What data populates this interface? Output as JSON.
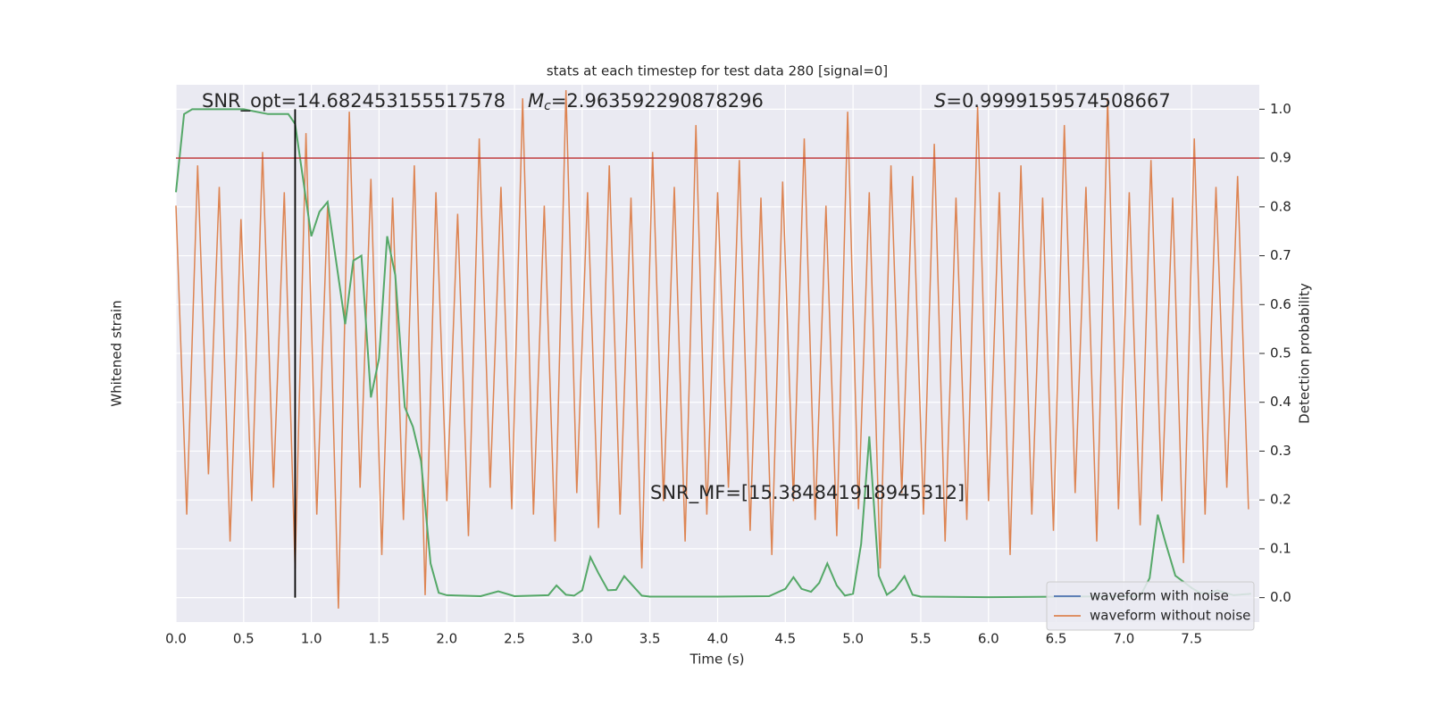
{
  "chart_data": {
    "type": "line",
    "title": "stats at each timestep for test data 280 [signal=0]",
    "xlabel": "Time (s)",
    "ylabel": "Whitened strain",
    "y2label": "Detection probability",
    "xlim": [
      0,
      8.0
    ],
    "ylim": [
      -1,
      1
    ],
    "y2lim": [
      -0.05,
      1.05
    ],
    "xticks": [
      {
        "value": 0,
        "label": "0.0"
      },
      {
        "value": 0.5,
        "label": "0.5"
      },
      {
        "value": 1,
        "label": "1.0"
      },
      {
        "value": 1.5,
        "label": "1.5"
      },
      {
        "value": 2,
        "label": "2.0"
      },
      {
        "value": 2.5,
        "label": "2.5"
      },
      {
        "value": 3,
        "label": "3.0"
      },
      {
        "value": 3.5,
        "label": "3.5"
      },
      {
        "value": 4,
        "label": "4.0"
      },
      {
        "value": 4.5,
        "label": "4.5"
      },
      {
        "value": 5,
        "label": "5.0"
      },
      {
        "value": 5.5,
        "label": "5.5"
      },
      {
        "value": 6,
        "label": "6.0"
      },
      {
        "value": 6.5,
        "label": "6.5"
      },
      {
        "value": 7,
        "label": "7.0"
      },
      {
        "value": 7.5,
        "label": "7.5"
      }
    ],
    "y2ticks": [
      {
        "value": 0,
        "label": "0.0"
      },
      {
        "value": 0.1,
        "label": "0.1"
      },
      {
        "value": 0.2,
        "label": "0.2"
      },
      {
        "value": 0.3,
        "label": "0.3"
      },
      {
        "value": 0.4,
        "label": "0.4"
      },
      {
        "value": 0.5,
        "label": "0.5"
      },
      {
        "value": 0.6,
        "label": "0.6"
      },
      {
        "value": 0.7,
        "label": "0.7"
      },
      {
        "value": 0.8,
        "label": "0.8"
      },
      {
        "value": 0.9,
        "label": "0.9"
      },
      {
        "value": 1,
        "label": "1.0"
      }
    ],
    "grid": true,
    "legend": "lower right",
    "threshold": 0.9,
    "threshold_color": "#c03d3e",
    "marker_x": 0.88,
    "marker_color": "#000000",
    "annotations": [
      {
        "text": "SNR_opt=14.682453155517578"
      },
      {
        "symbol": "M",
        "sub": "c",
        "text": "=2.963592290878296"
      },
      {
        "symbol": "S",
        "text": "=0.9999159574508667"
      },
      {
        "text": "SNR_MF=[15.384841918945312]"
      }
    ],
    "series": [
      {
        "name": "waveform with noise",
        "color": "#4c72b0",
        "x": [],
        "values": []
      },
      {
        "name": "waveform without noise",
        "color": "#dd8452",
        "x": [
          0,
          0.08,
          0.16,
          0.24,
          0.32,
          0.4,
          0.48,
          0.56,
          0.64,
          0.72,
          0.8,
          0.88,
          0.96,
          1.04,
          1.12,
          1.2,
          1.28,
          1.36,
          1.44,
          1.52,
          1.6,
          1.68,
          1.76,
          1.84,
          1.92,
          2,
          2.08,
          2.16,
          2.24,
          2.32,
          2.4,
          2.48,
          2.56,
          2.64,
          2.72,
          2.8,
          2.88,
          2.96,
          3.04,
          3.12,
          3.2,
          3.28,
          3.36,
          3.44,
          3.52,
          3.6,
          3.68,
          3.76,
          3.84,
          3.92,
          4,
          4.08,
          4.16,
          4.24,
          4.32,
          4.4,
          4.48,
          4.56,
          4.64,
          4.72,
          4.8,
          4.88,
          4.96,
          5.04,
          5.12,
          5.2,
          5.28,
          5.36,
          5.44,
          5.52,
          5.6,
          5.68,
          5.76,
          5.84,
          5.92,
          6,
          6.08,
          6.16,
          6.24,
          6.32,
          6.4,
          6.48,
          6.56,
          6.64,
          6.72,
          6.8,
          6.88,
          6.96,
          7.04,
          7.12,
          7.2,
          7.28,
          7.36,
          7.44,
          7.52,
          7.6,
          7.68,
          7.76,
          7.84,
          7.92
        ],
        "values": [
          0.55,
          -0.6,
          0.7,
          -0.45,
          0.62,
          -0.7,
          0.5,
          -0.55,
          0.75,
          -0.5,
          0.6,
          -0.8,
          0.82,
          -0.6,
          0.55,
          -0.95,
          0.9,
          -0.5,
          0.65,
          -0.75,
          0.58,
          -0.62,
          0.7,
          -0.9,
          0.6,
          -0.55,
          0.52,
          -0.68,
          0.8,
          -0.5,
          0.62,
          -0.58,
          0.95,
          -0.6,
          0.55,
          -0.7,
          0.98,
          -0.52,
          0.6,
          -0.65,
          0.7,
          -0.6,
          0.58,
          -0.8,
          0.75,
          -0.55,
          0.62,
          -0.7,
          0.85,
          -0.6,
          0.6,
          -0.5,
          0.72,
          -0.66,
          0.58,
          -0.75,
          0.64,
          -0.55,
          0.8,
          -0.62,
          0.55,
          -0.68,
          0.9,
          -0.58,
          0.6,
          -0.8,
          0.7,
          -0.52,
          0.66,
          -0.6,
          0.78,
          -0.7,
          0.58,
          -0.62,
          0.92,
          -0.55,
          0.6,
          -0.75,
          0.7,
          -0.6,
          0.58,
          -0.66,
          0.85,
          -0.52,
          0.62,
          -0.7,
          0.95,
          -0.58,
          0.6,
          -0.64,
          0.72,
          -0.55,
          0.58,
          -0.78,
          0.8,
          -0.6,
          0.62,
          -0.5,
          0.66,
          -0.58
        ]
      },
      {
        "axis": "y2",
        "color": "#55a868",
        "x": [
          0,
          0.06,
          0.12,
          0.5,
          0.68,
          0.83,
          0.88,
          1.0,
          1.06,
          1.12,
          1.25,
          1.31,
          1.37,
          1.44,
          1.5,
          1.56,
          1.62,
          1.69,
          1.75,
          1.81,
          1.88,
          1.94,
          2.0,
          2.25,
          2.38,
          2.5,
          2.75,
          2.81,
          2.88,
          2.94,
          3.0,
          3.06,
          3.12,
          3.19,
          3.25,
          3.31,
          3.44,
          3.5,
          4.0,
          4.38,
          4.5,
          4.56,
          4.62,
          4.69,
          4.75,
          4.81,
          4.88,
          4.94,
          5.0,
          5.06,
          5.12,
          5.19,
          5.25,
          5.31,
          5.38,
          5.44,
          5.5,
          6.0,
          7.12,
          7.19,
          7.25,
          7.31,
          7.38,
          7.5,
          7.56,
          7.62,
          7.69,
          7.81,
          7.94
        ],
        "values": [
          0.83,
          0.99,
          1.0,
          1.0,
          0.99,
          0.99,
          0.97,
          0.74,
          0.79,
          0.81,
          0.56,
          0.69,
          0.7,
          0.41,
          0.49,
          0.74,
          0.66,
          0.39,
          0.35,
          0.28,
          0.07,
          0.01,
          0.005,
          0.003,
          0.013,
          0.003,
          0.005,
          0.025,
          0.006,
          0.004,
          0.015,
          0.083,
          0.05,
          0.015,
          0.016,
          0.044,
          0.004,
          0.002,
          0.002,
          0.003,
          0.018,
          0.042,
          0.018,
          0.012,
          0.03,
          0.07,
          0.025,
          0.004,
          0.008,
          0.11,
          0.33,
          0.045,
          0.006,
          0.018,
          0.044,
          0.006,
          0.002,
          0.001,
          0.003,
          0.04,
          0.17,
          0.11,
          0.045,
          0.02,
          0.01,
          0.008,
          0.015,
          0.005,
          0.008
        ]
      }
    ]
  }
}
